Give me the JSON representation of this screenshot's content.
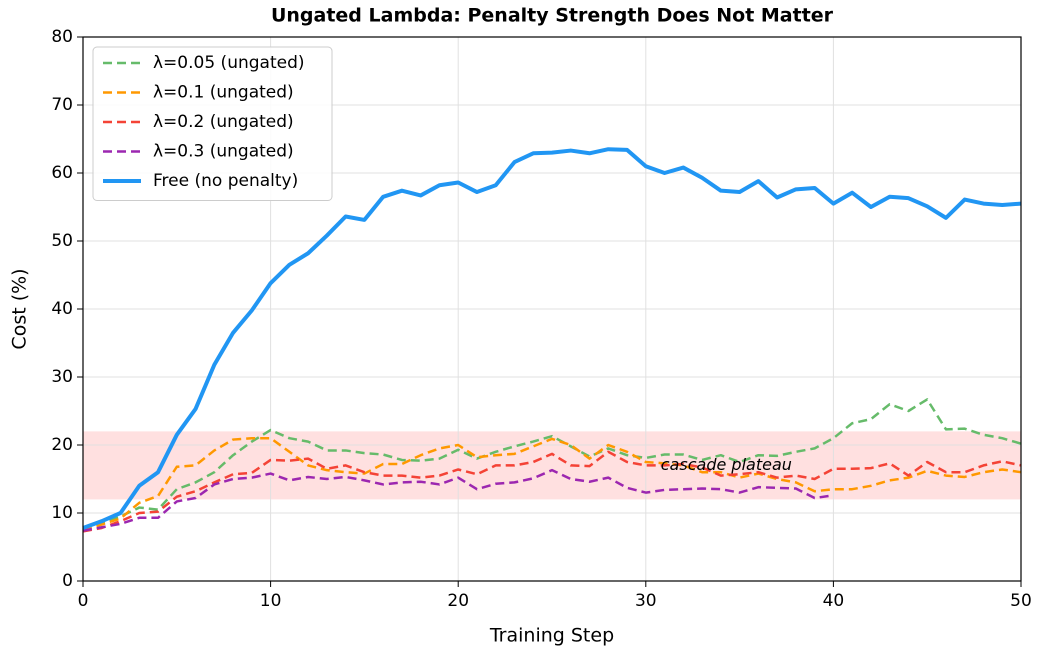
{
  "chart_data": {
    "type": "line",
    "title": "Ungated Lambda: Penalty Strength Does Not Matter",
    "x_label": "Training Step",
    "y_label": "Cost (%)",
    "x": [
      0,
      1,
      2,
      3,
      4,
      5,
      6,
      7,
      8,
      9,
      10,
      11,
      12,
      13,
      14,
      15,
      16,
      17,
      18,
      19,
      20,
      21,
      22,
      23,
      24,
      25,
      26,
      27,
      28,
      29,
      30,
      31,
      32,
      33,
      34,
      35,
      36,
      37,
      38,
      39,
      40,
      41,
      42,
      43,
      44,
      45,
      46,
      47,
      48,
      49,
      50
    ],
    "series": [
      {
        "name": "λ=0.05 (ungated)",
        "color": "#66bb6a",
        "linestyle": "dashed",
        "values": [
          7.6,
          8.5,
          9.5,
          10.8,
          10.5,
          13.5,
          14.5,
          16,
          18.5,
          20.5,
          22.2,
          21,
          20.5,
          19.2,
          19.2,
          18.8,
          18.6,
          17.8,
          17.7,
          18,
          19.3,
          18,
          19,
          19.8,
          20.5,
          21.3,
          19.8,
          18.3,
          19.5,
          18.5,
          18.1,
          18.6,
          18.6,
          17.8,
          18.5,
          17.5,
          18.5,
          18.4,
          19,
          19.5,
          21,
          23.2,
          23.8,
          26,
          25,
          26.7,
          22.3,
          22.4,
          21.5,
          21,
          20.2
        ]
      },
      {
        "name": "λ=0.1 (ungated)",
        "color": "#ff9800",
        "linestyle": "dashed",
        "values": [
          7.5,
          8.3,
          9.2,
          11.5,
          12.5,
          16.8,
          17,
          19.2,
          20.8,
          21,
          21,
          19,
          17,
          16.3,
          16,
          15.8,
          17.2,
          17.2,
          18.5,
          19.5,
          20,
          18.2,
          18.5,
          18.7,
          19.8,
          20.9,
          20,
          18,
          20,
          19,
          17.5,
          17.3,
          17,
          16,
          16,
          15.2,
          15.8,
          15,
          14.5,
          13.2,
          13.5,
          13.5,
          14,
          14.8,
          15.2,
          16.2,
          15.5,
          15.3,
          16,
          16.4,
          16
        ]
      },
      {
        "name": "λ=0.2 (ungated)",
        "color": "#f44336",
        "linestyle": "dashed",
        "values": [
          7.3,
          7.8,
          8.8,
          10,
          10.2,
          12.4,
          13.2,
          14.5,
          15.7,
          15.9,
          17.8,
          17.7,
          18,
          16.5,
          17,
          16,
          15.5,
          15.5,
          15.2,
          15.5,
          16.4,
          15.7,
          17,
          17,
          17.5,
          18.7,
          17,
          16.9,
          19,
          17.5,
          17,
          17,
          17.2,
          16.7,
          15.5,
          15.7,
          16,
          15.2,
          15.5,
          15,
          16.5,
          16.5,
          16.6,
          17.3,
          15.5,
          17.5,
          16,
          16,
          17,
          17.6,
          17
        ]
      },
      {
        "name": "λ=0.3 (ungated)",
        "color": "#9c27b0",
        "linestyle": "dashed",
        "values": [
          7.4,
          7.9,
          8.4,
          9.3,
          9.3,
          11.7,
          12.2,
          14.2,
          15,
          15.2,
          15.8,
          14.8,
          15.3,
          15,
          15.3,
          14.8,
          14.2,
          14.5,
          14.6,
          14.2,
          15.2,
          13.5,
          14.3,
          14.5,
          15.1,
          16.3,
          15,
          14.6,
          15.2,
          13.7,
          13,
          13.4,
          13.5,
          13.6,
          13.5,
          13,
          13.8,
          13.7,
          13.6,
          12.2,
          12.6,
          null,
          null,
          null,
          null,
          null,
          null,
          null,
          null,
          null,
          null
        ]
      },
      {
        "name": "Free (no penalty)",
        "color": "#2196f3",
        "linestyle": "solid",
        "values": [
          7.8,
          8.8,
          10,
          14,
          16,
          21.5,
          25.3,
          31.8,
          36.5,
          39.8,
          43.8,
          46.5,
          48.2,
          50.8,
          53.6,
          53.1,
          56.5,
          57.4,
          56.7,
          58.2,
          58.6,
          57.2,
          58.2,
          61.6,
          62.9,
          63,
          63.3,
          62.9,
          63.5,
          63.4,
          61,
          60,
          60.8,
          59.3,
          57.4,
          57.2,
          58.8,
          56.4,
          57.6,
          57.8,
          55.5,
          57.1,
          55,
          56.5,
          56.3,
          55.1,
          53.4,
          56.1,
          55.5,
          55.3,
          55.5
        ]
      }
    ],
    "band": {
      "y": [
        12,
        22
      ],
      "color": "#ffcccc"
    },
    "annotation": {
      "text": "cascade plateau",
      "x": 30.8,
      "y": 17,
      "color": "#ff0000"
    },
    "xlim": [
      0,
      50
    ],
    "xticks": [
      0,
      10,
      20,
      30,
      40,
      50
    ],
    "ylim": [
      0,
      80
    ],
    "yticks": [
      0,
      10,
      20,
      30,
      40,
      50,
      60,
      70,
      80
    ],
    "grid": true,
    "legend": "upper left"
  }
}
